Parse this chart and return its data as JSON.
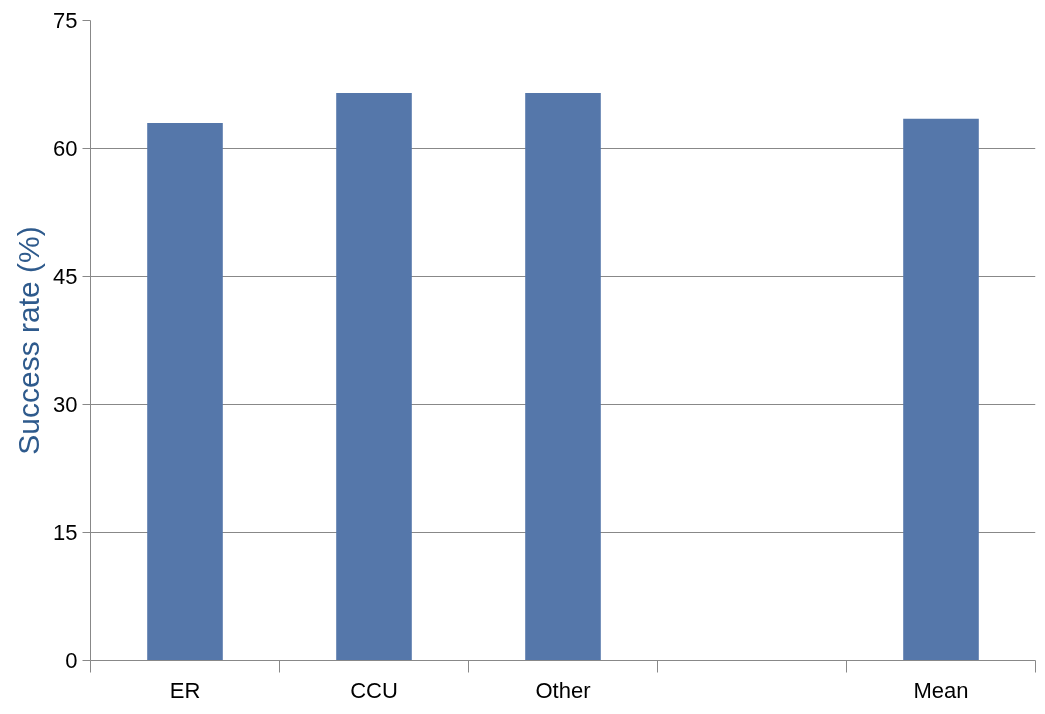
{
  "chart_data": {
    "type": "bar",
    "ylabel": "Success rate (%)",
    "categories": [
      "ER",
      "CCU",
      "Other",
      null,
      "Mean"
    ],
    "values": [
      63,
      66.5,
      66.5,
      null,
      63.5
    ],
    "color": "#5577aa",
    "ylim": [
      0,
      75
    ],
    "yticks": [
      0,
      15,
      30,
      45,
      60,
      75
    ],
    "grid": "y"
  }
}
